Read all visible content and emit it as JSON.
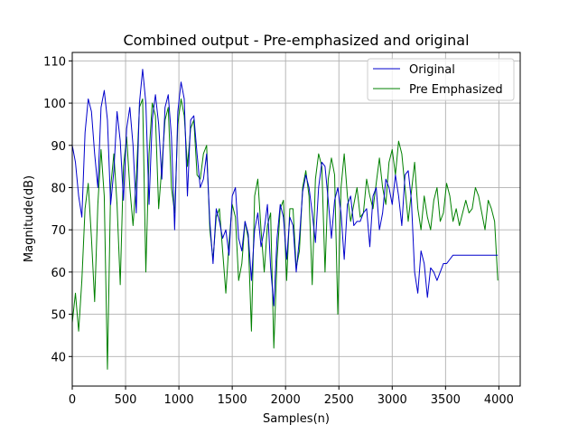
{
  "chart_data": {
    "type": "line",
    "title": "Combined output - Pre-emphasized and original",
    "xlabel": "Samples(n)",
    "ylabel": "Magnitude(dB)",
    "xlim": [
      0,
      4200
    ],
    "ylim": [
      33,
      112
    ],
    "xticks": [
      0,
      500,
      1000,
      1500,
      2000,
      2500,
      3000,
      3500,
      4000
    ],
    "yticks": [
      40,
      50,
      60,
      70,
      80,
      90,
      100,
      110
    ],
    "grid": true,
    "legend_position": "top-right",
    "series": [
      {
        "name": "Original",
        "color": "#0000cc",
        "x": [
          0,
          30,
          60,
          90,
          120,
          150,
          180,
          210,
          240,
          270,
          300,
          330,
          360,
          390,
          420,
          450,
          480,
          510,
          540,
          570,
          600,
          630,
          660,
          690,
          720,
          750,
          780,
          810,
          840,
          870,
          900,
          930,
          960,
          990,
          1020,
          1050,
          1080,
          1110,
          1140,
          1170,
          1200,
          1230,
          1260,
          1290,
          1320,
          1350,
          1380,
          1410,
          1440,
          1470,
          1500,
          1530,
          1560,
          1590,
          1620,
          1650,
          1680,
          1710,
          1740,
          1770,
          1800,
          1830,
          1860,
          1890,
          1920,
          1950,
          1980,
          2010,
          2040,
          2070,
          2100,
          2130,
          2160,
          2190,
          2220,
          2250,
          2280,
          2310,
          2340,
          2370,
          2400,
          2430,
          2460,
          2490,
          2520,
          2550,
          2580,
          2610,
          2640,
          2670,
          2700,
          2730,
          2760,
          2790,
          2820,
          2850,
          2880,
          2910,
          2940,
          2970,
          3000,
          3030,
          3060,
          3090,
          3120,
          3150,
          3180,
          3210,
          3240,
          3270,
          3300,
          3330,
          3360,
          3390,
          3420,
          3450,
          3480,
          3510,
          3540,
          3570,
          3600,
          3630,
          3660,
          3690,
          3720,
          3750,
          3780,
          3810,
          3840,
          3870,
          3900,
          3930,
          3960,
          3990
        ],
        "values": [
          90,
          86,
          78,
          73,
          93,
          101,
          98,
          88,
          80,
          99,
          103,
          96,
          76,
          84,
          98,
          91,
          77,
          94,
          99,
          90,
          74,
          100,
          108,
          100,
          76,
          96,
          102,
          95,
          82,
          99,
          102,
          92,
          70,
          98,
          105,
          101,
          78,
          96,
          97,
          88,
          80,
          82,
          88,
          72,
          62,
          75,
          72,
          68,
          70,
          64,
          78,
          80,
          68,
          65,
          72,
          69,
          58,
          70,
          74,
          66,
          70,
          76,
          61,
          52,
          68,
          76,
          73,
          63,
          73,
          71,
          60,
          68,
          79,
          83,
          80,
          74,
          67,
          80,
          86,
          85,
          77,
          68,
          77,
          80,
          74,
          63,
          76,
          78,
          71,
          72,
          72,
          74,
          75,
          66,
          78,
          80,
          70,
          74,
          82,
          80,
          76,
          83,
          78,
          71,
          83,
          84,
          77,
          60,
          55,
          65,
          62,
          54,
          61,
          60,
          58,
          60,
          62,
          62,
          63,
          64,
          64,
          64,
          64,
          64,
          64,
          64,
          64,
          64,
          64,
          64,
          64,
          64,
          64,
          64
        ]
      },
      {
        "name": "Pre Emphasized",
        "color": "#008000",
        "x": [
          0,
          30,
          60,
          90,
          120,
          150,
          180,
          210,
          240,
          270,
          300,
          330,
          360,
          390,
          420,
          450,
          480,
          510,
          540,
          570,
          600,
          630,
          660,
          690,
          720,
          750,
          780,
          810,
          840,
          870,
          900,
          930,
          960,
          990,
          1020,
          1050,
          1080,
          1110,
          1140,
          1170,
          1200,
          1230,
          1260,
          1290,
          1320,
          1350,
          1380,
          1410,
          1440,
          1470,
          1500,
          1530,
          1560,
          1590,
          1620,
          1650,
          1680,
          1710,
          1740,
          1770,
          1800,
          1830,
          1860,
          1890,
          1920,
          1950,
          1980,
          2010,
          2040,
          2070,
          2100,
          2130,
          2160,
          2190,
          2220,
          2250,
          2280,
          2310,
          2340,
          2370,
          2400,
          2430,
          2460,
          2490,
          2520,
          2550,
          2580,
          2610,
          2640,
          2670,
          2700,
          2730,
          2760,
          2790,
          2820,
          2850,
          2880,
          2910,
          2940,
          2970,
          3000,
          3030,
          3060,
          3090,
          3120,
          3150,
          3180,
          3210,
          3240,
          3270,
          3300,
          3330,
          3360,
          3390,
          3420,
          3450,
          3480,
          3510,
          3540,
          3570,
          3600,
          3630,
          3660,
          3690,
          3720,
          3750,
          3780,
          3810,
          3840,
          3870,
          3900,
          3930,
          3960,
          3990
        ],
        "values": [
          48,
          55,
          46,
          58,
          75,
          81,
          68,
          53,
          76,
          89,
          78,
          37,
          80,
          88,
          76,
          57,
          85,
          92,
          80,
          71,
          82,
          99,
          101,
          60,
          88,
          100,
          97,
          75,
          85,
          96,
          99,
          80,
          74,
          95,
          101,
          97,
          85,
          94,
          96,
          83,
          82,
          88,
          90,
          70,
          63,
          73,
          75,
          65,
          55,
          67,
          76,
          73,
          58,
          62,
          72,
          68,
          46,
          78,
          82,
          70,
          60,
          71,
          74,
          42,
          63,
          75,
          77,
          58,
          75,
          75,
          61,
          65,
          80,
          84,
          78,
          57,
          82,
          88,
          85,
          60,
          82,
          87,
          83,
          50,
          80,
          88,
          78,
          72,
          76,
          80,
          73,
          74,
          82,
          78,
          75,
          81,
          87,
          80,
          76,
          86,
          89,
          83,
          91,
          88,
          80,
          72,
          79,
          86,
          75,
          70,
          78,
          73,
          70,
          77,
          80,
          72,
          74,
          81,
          78,
          72,
          75,
          71,
          74,
          77,
          74,
          75,
          80,
          78,
          74,
          70,
          77,
          75,
          72,
          58
        ]
      }
    ]
  }
}
